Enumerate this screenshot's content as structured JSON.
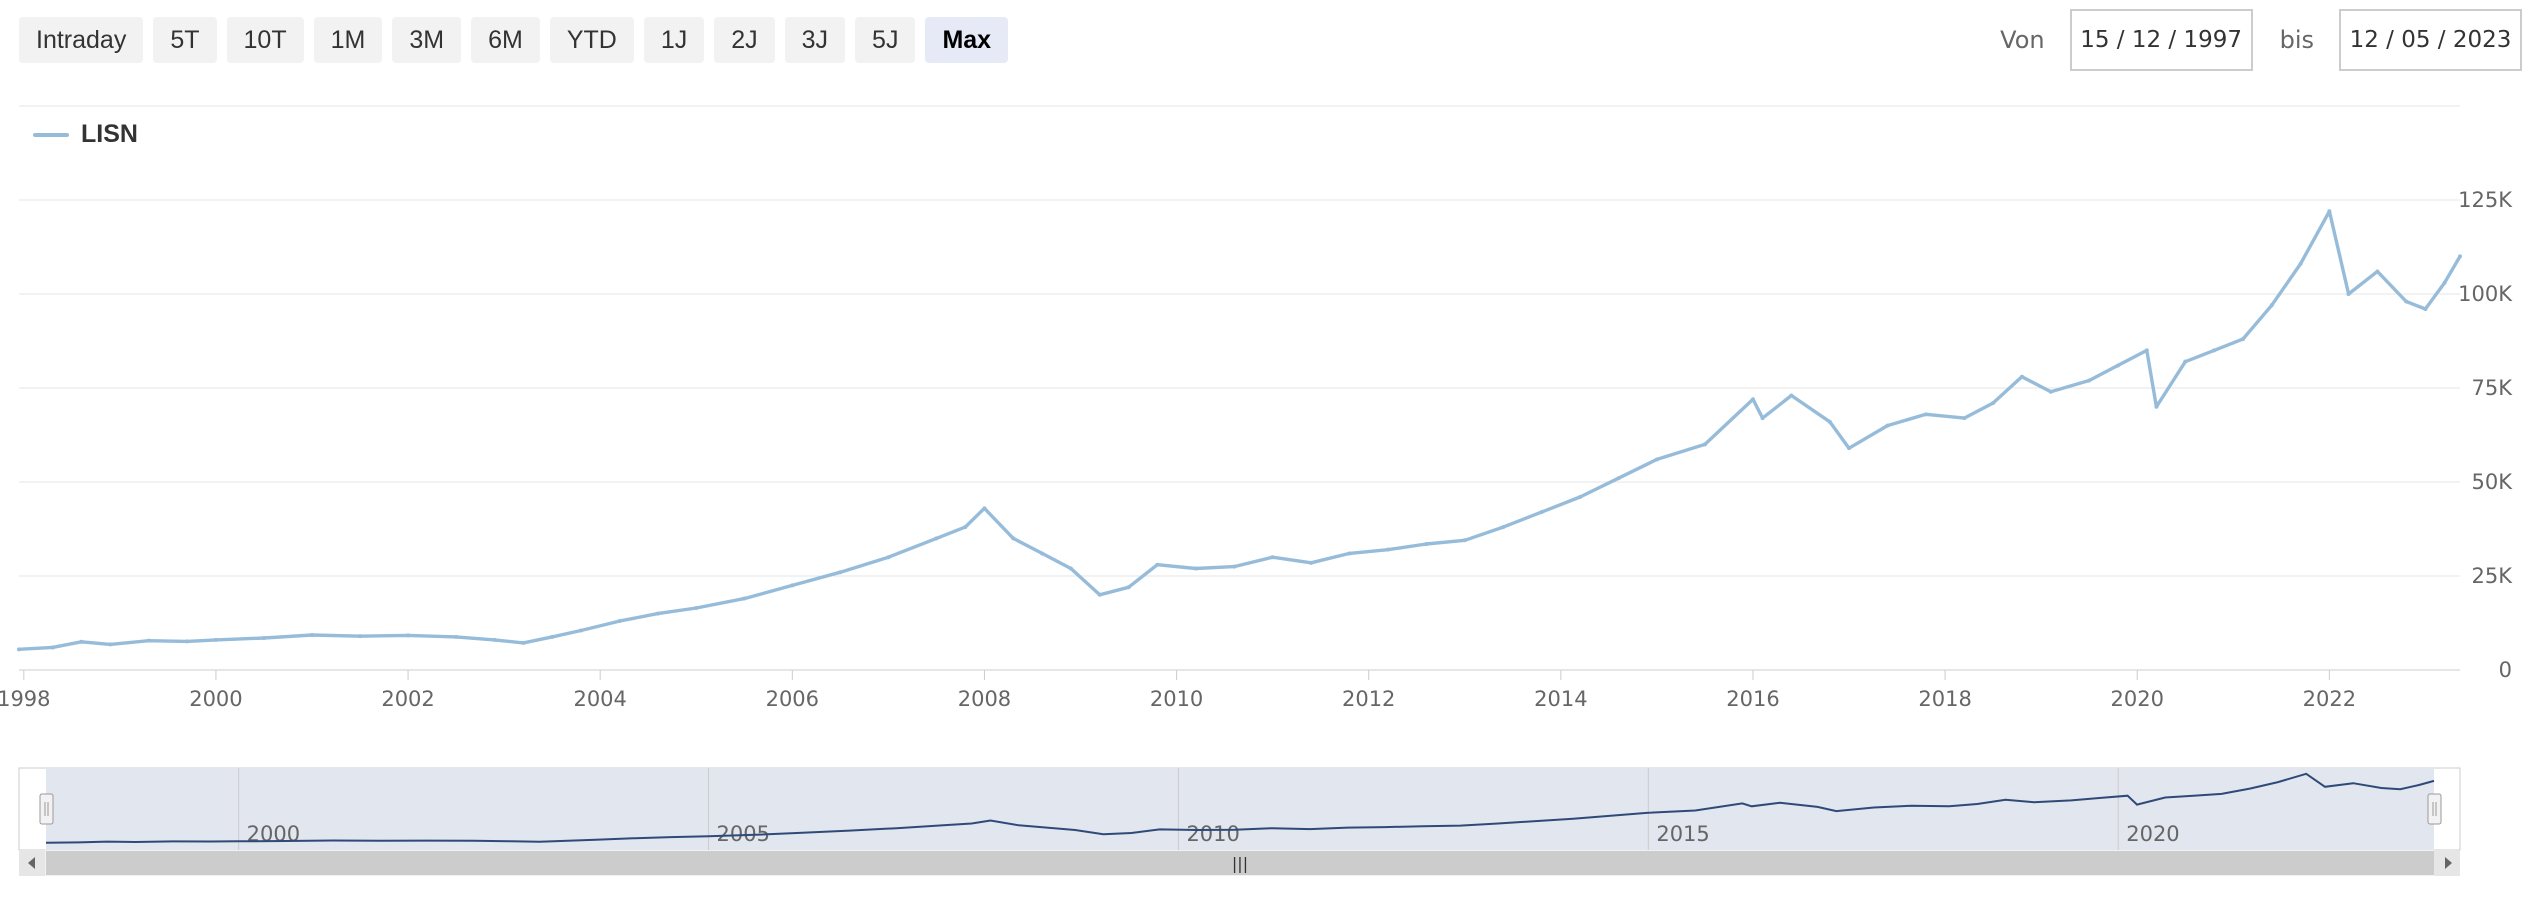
{
  "range_buttons": [
    {
      "label": "Intraday",
      "active": false
    },
    {
      "label": "5T",
      "active": false
    },
    {
      "label": "10T",
      "active": false
    },
    {
      "label": "1M",
      "active": false
    },
    {
      "label": "3M",
      "active": false
    },
    {
      "label": "6M",
      "active": false
    },
    {
      "label": "YTD",
      "active": false
    },
    {
      "label": "1J",
      "active": false
    },
    {
      "label": "2J",
      "active": false
    },
    {
      "label": "3J",
      "active": false
    },
    {
      "label": "5J",
      "active": false
    },
    {
      "label": "Max",
      "active": true
    }
  ],
  "date_range": {
    "from_label": "Von",
    "from_value": "15 / 12 / 1997",
    "to_label": "bis",
    "to_value": "12 / 05 / 2023"
  },
  "navigator": {
    "labels": [
      "2000",
      "2005",
      "2010",
      "2015",
      "2020"
    ],
    "scrollbar_grip": "|||"
  },
  "colors": {
    "series": "#96bcda",
    "navigator_line": "#2f4a78",
    "navigator_bg": "#e2e6ee",
    "grid": "#e6e6e6"
  },
  "chart_data": {
    "type": "line",
    "title": "",
    "xlabel": "",
    "ylabel": "",
    "legend": {
      "position": "top-left"
    },
    "grid": true,
    "ylim": [
      0,
      125000
    ],
    "xlim": [
      1997.95,
      2023.36
    ],
    "y_ticks": [
      0,
      25000,
      50000,
      75000,
      100000,
      125000
    ],
    "y_tick_labels": [
      "0",
      "25K",
      "50K",
      "75K",
      "100K",
      "125K"
    ],
    "x_ticks": [
      1998,
      2000,
      2002,
      2004,
      2006,
      2008,
      2010,
      2012,
      2014,
      2016,
      2018,
      2020,
      2022
    ],
    "x_tick_labels": [
      "1998",
      "2000",
      "2002",
      "2004",
      "2006",
      "2008",
      "2010",
      "2012",
      "2014",
      "2016",
      "2018",
      "2020",
      "2022"
    ],
    "series": [
      {
        "name": "LISN",
        "x": [
          1997.95,
          1998.3,
          1998.6,
          1998.9,
          1999.3,
          1999.7,
          2000.0,
          2000.5,
          2001.0,
          2001.5,
          2002.0,
          2002.5,
          2002.9,
          2003.2,
          2003.5,
          2003.8,
          2004.2,
          2004.6,
          2005.0,
          2005.5,
          2006.0,
          2006.5,
          2007.0,
          2007.5,
          2007.8,
          2008.0,
          2008.3,
          2008.6,
          2008.9,
          2009.2,
          2009.5,
          2009.8,
          2010.2,
          2010.6,
          2011.0,
          2011.4,
          2011.8,
          2012.2,
          2012.6,
          2013.0,
          2013.4,
          2013.8,
          2014.2,
          2014.6,
          2015.0,
          2015.5,
          2016.0,
          2016.1,
          2016.4,
          2016.8,
          2017.0,
          2017.4,
          2017.8,
          2018.2,
          2018.5,
          2018.8,
          2019.1,
          2019.5,
          2019.8,
          2020.1,
          2020.2,
          2020.5,
          2020.8,
          2021.1,
          2021.4,
          2021.7,
          2022.0,
          2022.2,
          2022.5,
          2022.8,
          2023.0,
          2023.2,
          2023.36
        ],
        "values": [
          5500,
          6000,
          7500,
          6800,
          7800,
          7600,
          8000,
          8500,
          9300,
          9000,
          9200,
          8800,
          8000,
          7200,
          8800,
          10500,
          13000,
          15000,
          16500,
          19000,
          22500,
          26000,
          30000,
          35000,
          38000,
          43000,
          35000,
          31000,
          27000,
          20000,
          22000,
          28000,
          27000,
          27500,
          30000,
          28500,
          31000,
          32000,
          33500,
          34500,
          38000,
          42000,
          46000,
          51000,
          56000,
          60000,
          72000,
          67000,
          73000,
          66000,
          59000,
          65000,
          68000,
          67000,
          71000,
          78000,
          74000,
          77000,
          81000,
          85000,
          70000,
          82000,
          85000,
          88000,
          97000,
          108000,
          122000,
          100000,
          106000,
          98000,
          96000,
          103000,
          110000
        ]
      }
    ]
  }
}
